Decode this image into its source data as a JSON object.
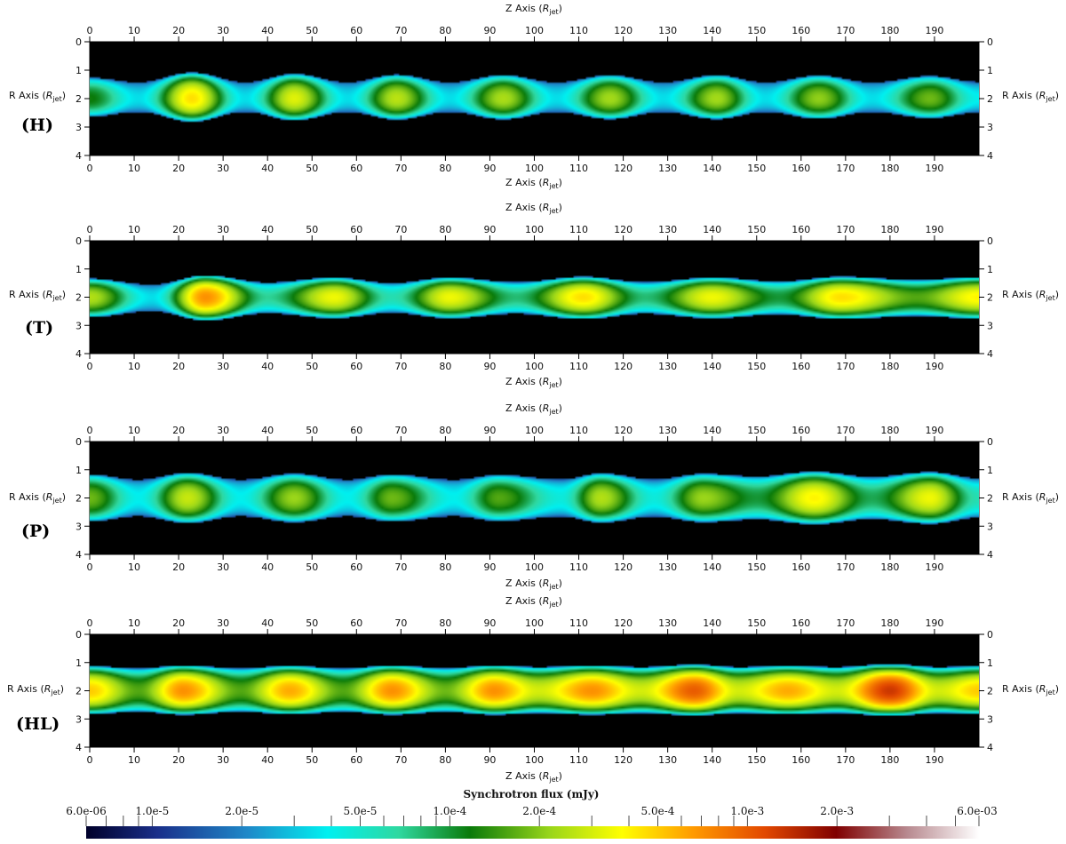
{
  "chart_data": [
    {
      "type": "heatmap",
      "panel_label": "(H)",
      "xlabel": "Z Axis",
      "xlabel_sub": "jet",
      "ylabel": "R Axis",
      "ylabel_sub": "jet",
      "xlim": [
        0,
        200
      ],
      "ylim": [
        0,
        4
      ],
      "x_ticks": [
        0,
        10,
        20,
        30,
        40,
        50,
        60,
        70,
        80,
        90,
        100,
        110,
        120,
        130,
        140,
        150,
        160,
        170,
        180,
        190
      ],
      "y_ticks": [
        0,
        1,
        2,
        3,
        4
      ],
      "jet_axis_r": 2.0,
      "edge_top_mean": 1.3,
      "edge_bottom_mean": 2.6,
      "edge_wobble": 0.22,
      "knots": [
        {
          "z": 0,
          "flux": 0.00012
        },
        {
          "z": 11,
          "flux": 3.5e-05
        },
        {
          "z": 23,
          "flux": 0.00045
        },
        {
          "z": 35,
          "flux": 3.5e-05
        },
        {
          "z": 46,
          "flux": 0.00032
        },
        {
          "z": 58,
          "flux": 3.5e-05
        },
        {
          "z": 69,
          "flux": 0.00026
        },
        {
          "z": 81,
          "flux": 3.5e-05
        },
        {
          "z": 93,
          "flux": 0.00024
        },
        {
          "z": 105,
          "flux": 3.5e-05
        },
        {
          "z": 117,
          "flux": 0.00023
        },
        {
          "z": 129,
          "flux": 3.5e-05
        },
        {
          "z": 141,
          "flux": 0.00023
        },
        {
          "z": 152,
          "flux": 3.5e-05
        },
        {
          "z": 164,
          "flux": 0.00021
        },
        {
          "z": 176,
          "flux": 3.5e-05
        },
        {
          "z": 189,
          "flux": 0.00018
        },
        {
          "z": 200,
          "flux": 4e-05
        }
      ]
    },
    {
      "type": "heatmap",
      "panel_label": "(T)",
      "xlabel": "Z Axis",
      "xlabel_sub": "jet",
      "ylabel": "R Axis",
      "ylabel_sub": "jet",
      "xlim": [
        0,
        200
      ],
      "ylim": [
        0,
        4
      ],
      "x_ticks": [
        0,
        10,
        20,
        30,
        40,
        50,
        60,
        70,
        80,
        90,
        100,
        110,
        120,
        130,
        140,
        150,
        160,
        170,
        180,
        190
      ],
      "y_ticks": [
        0,
        1,
        2,
        3,
        4
      ],
      "jet_axis_r": 2.0,
      "edge_top_mean": 1.45,
      "edge_bottom_mean": 2.6,
      "edge_wobble": 0.18,
      "knots": [
        {
          "z": 0,
          "flux": 0.00025
        },
        {
          "z": 14,
          "flux": 3.5e-05
        },
        {
          "z": 26,
          "flux": 0.0007
        },
        {
          "z": 40,
          "flux": 7e-05
        },
        {
          "z": 55,
          "flux": 0.00035
        },
        {
          "z": 68,
          "flux": 6e-05
        },
        {
          "z": 81,
          "flux": 0.00035
        },
        {
          "z": 96,
          "flux": 8e-05
        },
        {
          "z": 111,
          "flux": 0.00045
        },
        {
          "z": 125,
          "flux": 8e-05
        },
        {
          "z": 140,
          "flux": 0.00035
        },
        {
          "z": 155,
          "flux": 0.0001
        },
        {
          "z": 169,
          "flux": 0.00045
        },
        {
          "z": 186,
          "flux": 0.00016
        },
        {
          "z": 200,
          "flux": 0.0004
        }
      ]
    },
    {
      "type": "heatmap",
      "panel_label": "(P)",
      "xlabel": "Z Axis",
      "xlabel_sub": "jet",
      "ylabel": "R Axis",
      "ylabel_sub": "jet",
      "xlim": [
        0,
        200
      ],
      "ylim": [
        0,
        4
      ],
      "x_ticks": [
        0,
        10,
        20,
        30,
        40,
        50,
        60,
        70,
        80,
        90,
        100,
        110,
        120,
        130,
        140,
        150,
        160,
        170,
        180,
        190
      ],
      "y_ticks": [
        0,
        1,
        2,
        3,
        4
      ],
      "jet_axis_r": 2.0,
      "edge_top_mean": 1.25,
      "edge_bottom_mean": 2.75,
      "edge_wobble": 0.2,
      "knots": [
        {
          "z": 0,
          "flux": 0.00018
        },
        {
          "z": 11,
          "flux": 4e-05
        },
        {
          "z": 22,
          "flux": 0.00028
        },
        {
          "z": 34,
          "flux": 4e-05
        },
        {
          "z": 46,
          "flux": 0.00022
        },
        {
          "z": 58,
          "flux": 4e-05
        },
        {
          "z": 68,
          "flux": 0.00018
        },
        {
          "z": 82,
          "flux": 4e-05
        },
        {
          "z": 92,
          "flux": 0.00016
        },
        {
          "z": 106,
          "flux": 4.5e-05
        },
        {
          "z": 115,
          "flux": 0.00025
        },
        {
          "z": 127,
          "flux": 4.5e-05
        },
        {
          "z": 138,
          "flux": 0.00022
        },
        {
          "z": 150,
          "flux": 0.0001
        },
        {
          "z": 163,
          "flux": 0.0004
        },
        {
          "z": 176,
          "flux": 9e-05
        },
        {
          "z": 189,
          "flux": 0.00035
        },
        {
          "z": 200,
          "flux": 6e-05
        }
      ]
    },
    {
      "type": "heatmap",
      "panel_label": "(HL)",
      "xlabel": "Z Axis",
      "xlabel_sub": "jet",
      "ylabel": "R Axis",
      "ylabel_sub": "jet",
      "xlim": [
        0,
        200
      ],
      "ylim": [
        0,
        4
      ],
      "x_ticks": [
        0,
        10,
        20,
        30,
        40,
        50,
        60,
        70,
        80,
        90,
        100,
        110,
        120,
        130,
        140,
        150,
        160,
        170,
        180,
        190
      ],
      "y_ticks": [
        0,
        1,
        2,
        3,
        4
      ],
      "jet_axis_r": 2.0,
      "edge_top_mean": 1.25,
      "edge_bottom_mean": 2.7,
      "edge_wobble": 0.12,
      "knots": [
        {
          "z": 0,
          "flux": 0.0005
        },
        {
          "z": 11,
          "flux": 0.00016
        },
        {
          "z": 21,
          "flux": 0.0007
        },
        {
          "z": 34,
          "flux": 0.00016
        },
        {
          "z": 45,
          "flux": 0.0006
        },
        {
          "z": 57,
          "flux": 0.00016
        },
        {
          "z": 68,
          "flux": 0.0007
        },
        {
          "z": 80,
          "flux": 0.00018
        },
        {
          "z": 91,
          "flux": 0.0007
        },
        {
          "z": 101,
          "flux": 0.0003
        },
        {
          "z": 113,
          "flux": 0.0007
        },
        {
          "z": 124,
          "flux": 0.0003
        },
        {
          "z": 136,
          "flux": 0.001
        },
        {
          "z": 146,
          "flux": 0.0003
        },
        {
          "z": 157,
          "flux": 0.0006
        },
        {
          "z": 168,
          "flux": 0.0003
        },
        {
          "z": 180,
          "flux": 0.0013
        },
        {
          "z": 191,
          "flux": 0.0003
        },
        {
          "z": 200,
          "flux": 0.0005
        }
      ]
    }
  ],
  "colorbar": {
    "title": "Synchrotron flux (mJy)",
    "scale": "log",
    "min": 6e-06,
    "max": 0.006,
    "min_label": "6.0e-06",
    "max_label": "6.0e-03",
    "labeled_ticks": [
      {
        "value": 1e-05,
        "label": "1.0e-5"
      },
      {
        "value": 2e-05,
        "label": "2.0e-5"
      },
      {
        "value": 5e-05,
        "label": "5.0e-5"
      },
      {
        "value": 0.0001,
        "label": "1.0e-4"
      },
      {
        "value": 0.0002,
        "label": "2.0e-4"
      },
      {
        "value": 0.0005,
        "label": "5.0e-4"
      },
      {
        "value": 0.001,
        "label": "1.0e-3"
      },
      {
        "value": 0.002,
        "label": "2.0e-3"
      }
    ],
    "colors": [
      {
        "stop": 0.0,
        "color": "#00002a"
      },
      {
        "stop": 0.08,
        "color": "#1a2f8a"
      },
      {
        "stop": 0.18,
        "color": "#1f88c8"
      },
      {
        "stop": 0.27,
        "color": "#00f0f0"
      },
      {
        "stop": 0.35,
        "color": "#2fd8a0"
      },
      {
        "stop": 0.43,
        "color": "#0a7a0a"
      },
      {
        "stop": 0.52,
        "color": "#9ad61a"
      },
      {
        "stop": 0.6,
        "color": "#ffff00"
      },
      {
        "stop": 0.68,
        "color": "#ff9a00"
      },
      {
        "stop": 0.76,
        "color": "#e24800"
      },
      {
        "stop": 0.84,
        "color": "#800000"
      },
      {
        "stop": 0.92,
        "color": "#b88a90"
      },
      {
        "stop": 1.0,
        "color": "#ffffff"
      }
    ],
    "background_color": "#000000"
  }
}
